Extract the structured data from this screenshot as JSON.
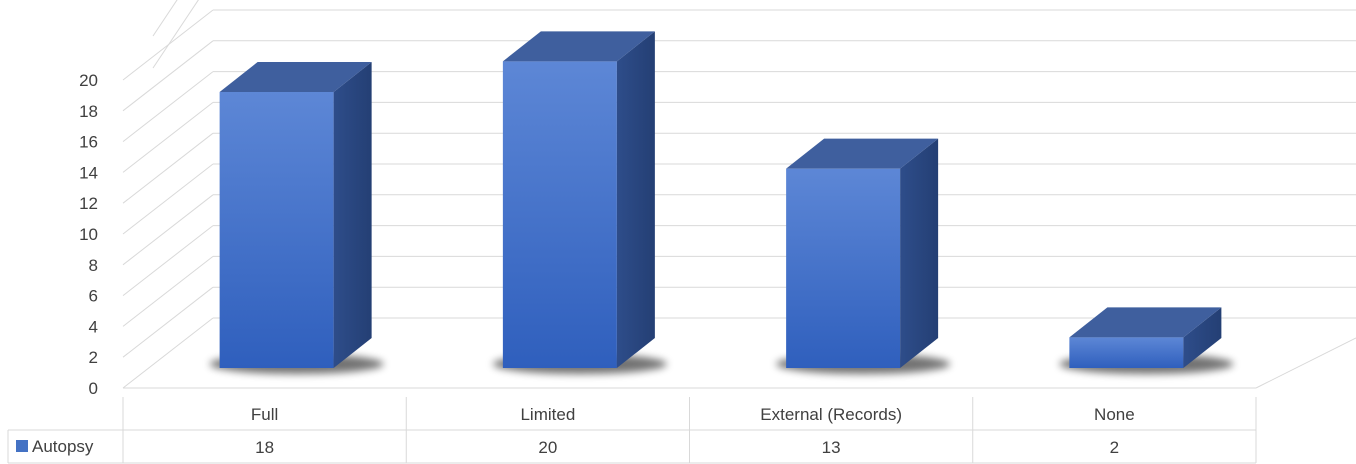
{
  "chart_data": {
    "type": "bar",
    "title": "",
    "xlabel": "",
    "ylabel": "",
    "categories": [
      "Full",
      "Limited",
      "External (Records)",
      "None"
    ],
    "series": [
      {
        "name": "Autopsy",
        "values": [
          18,
          20,
          13,
          2
        ],
        "color": "#4472c4"
      }
    ],
    "ylim": [
      0,
      20
    ],
    "ytick_step": 2,
    "yticks": [
      "0",
      "2",
      "4",
      "6",
      "8",
      "10",
      "12",
      "14",
      "16",
      "18",
      "20"
    ],
    "grid": true,
    "data_table": true,
    "legend_position": "data-table-row"
  }
}
